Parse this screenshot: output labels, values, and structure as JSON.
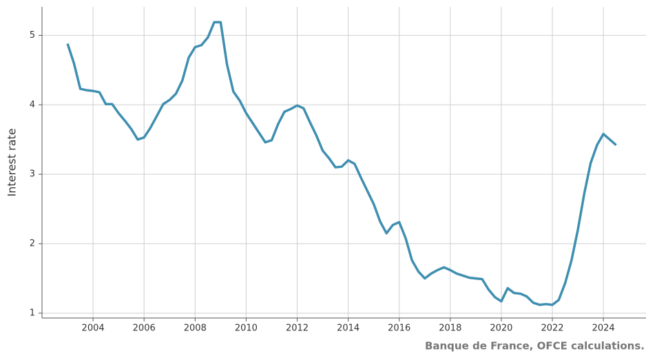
{
  "chart_data": {
    "type": "line",
    "y_label": "Interest rate",
    "source": "Banque de France, OFCE calculations.",
    "x": [
      2003.0,
      2003.25,
      2003.5,
      2003.75,
      2004.0,
      2004.25,
      2004.5,
      2004.75,
      2005.0,
      2005.25,
      2005.5,
      2005.75,
      2006.0,
      2006.25,
      2006.5,
      2006.75,
      2007.0,
      2007.25,
      2007.5,
      2007.75,
      2008.0,
      2008.25,
      2008.5,
      2008.75,
      2009.0,
      2009.25,
      2009.5,
      2009.75,
      2010.0,
      2010.25,
      2010.5,
      2010.75,
      2011.0,
      2011.25,
      2011.5,
      2011.75,
      2012.0,
      2012.25,
      2012.5,
      2012.75,
      2013.0,
      2013.25,
      2013.5,
      2013.75,
      2014.0,
      2014.25,
      2014.5,
      2014.75,
      2015.0,
      2015.25,
      2015.5,
      2015.75,
      2016.0,
      2016.25,
      2016.5,
      2016.75,
      2017.0,
      2017.25,
      2017.5,
      2017.75,
      2018.0,
      2018.25,
      2018.5,
      2018.75,
      2019.0,
      2019.25,
      2019.5,
      2019.75,
      2020.0,
      2020.25,
      2020.5,
      2020.75,
      2021.0,
      2021.25,
      2021.5,
      2021.75,
      2022.0,
      2022.25,
      2022.5,
      2022.75,
      2023.0,
      2023.25,
      2023.5,
      2023.75,
      2024.0,
      2024.25,
      2024.5
    ],
    "series": [
      {
        "color": "#3f8fb0",
        "values": [
          4.88,
          4.6,
          4.23,
          4.21,
          4.2,
          4.18,
          4.01,
          4.01,
          3.88,
          3.77,
          3.65,
          3.5,
          3.53,
          3.67,
          3.84,
          4.01,
          4.07,
          4.16,
          4.35,
          4.68,
          4.83,
          4.86,
          4.97,
          5.19,
          5.19,
          4.58,
          4.19,
          4.06,
          3.88,
          3.74,
          3.6,
          3.46,
          3.49,
          3.72,
          3.9,
          3.94,
          3.99,
          3.95,
          3.75,
          3.56,
          3.34,
          3.23,
          3.1,
          3.11,
          3.2,
          3.15,
          2.95,
          2.76,
          2.57,
          2.32,
          2.15,
          2.27,
          2.31,
          2.08,
          1.76,
          1.6,
          1.5,
          1.57,
          1.62,
          1.66,
          1.62,
          1.57,
          1.54,
          1.51,
          1.5,
          1.49,
          1.34,
          1.23,
          1.17,
          1.36,
          1.29,
          1.28,
          1.24,
          1.15,
          1.12,
          1.13,
          1.12,
          1.19,
          1.43,
          1.76,
          2.2,
          2.72,
          3.16,
          3.42,
          3.58,
          3.5,
          3.42
        ]
      }
    ],
    "xlim": [
      2002.0,
      2025.67
    ],
    "ylim": [
      0.93,
      5.41
    ],
    "xticks": [
      2004,
      2006,
      2008,
      2010,
      2012,
      2014,
      2016,
      2018,
      2020,
      2022,
      2024
    ],
    "yticks": [
      1,
      2,
      3,
      4,
      5
    ],
    "grid": true
  }
}
